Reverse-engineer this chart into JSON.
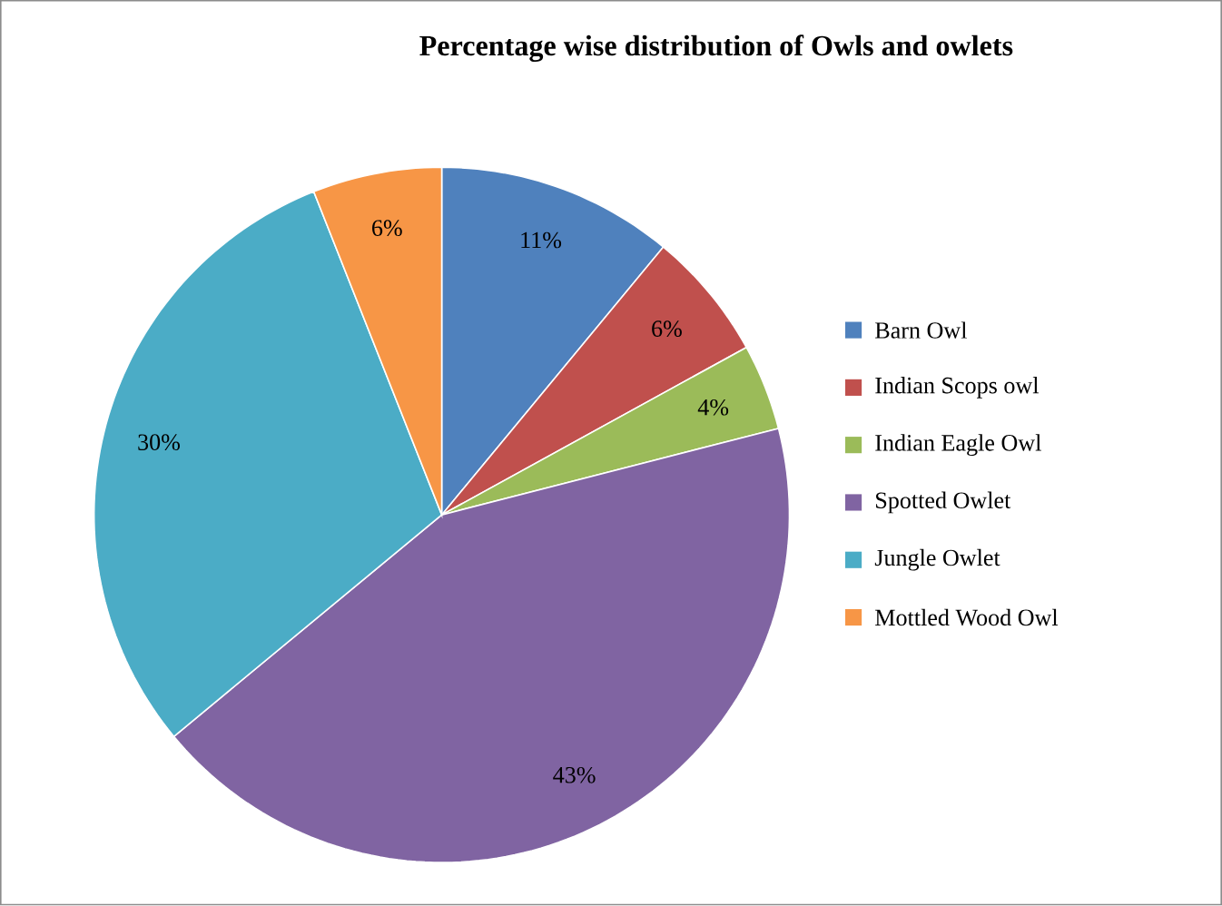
{
  "chart_data": {
    "type": "pie",
    "title": "Percentage wise distribution of Owls and owlets",
    "categories": [
      "Barn Owl",
      "Indian Scops owl",
      "Indian Eagle Owl",
      "Spotted Owlet",
      "Jungle Owlet",
      "Mottled Wood Owl"
    ],
    "values": [
      11,
      6,
      4,
      43,
      30,
      6
    ],
    "value_labels": [
      "11%",
      "6%",
      "4%",
      "43%",
      "30%",
      "6%"
    ],
    "colors": [
      "#4f81bd",
      "#c0504d",
      "#9bbb59",
      "#8064a2",
      "#4bacc6",
      "#f79646"
    ],
    "legend": "right"
  }
}
